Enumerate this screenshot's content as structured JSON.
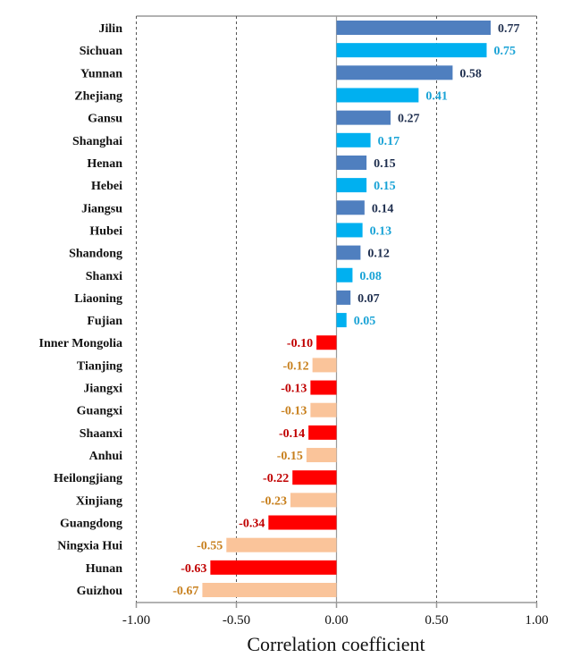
{
  "chart_data": {
    "type": "bar",
    "orientation": "horizontal",
    "xlabel": "Correlation coefficient",
    "xlim": [
      -1.0,
      1.0
    ],
    "xticks": [
      "-1.00",
      "-0.50",
      "0.00",
      "0.50",
      "1.00"
    ],
    "grid": "vertical dashed at tick positions",
    "categories": [
      "Jilin",
      "Sichuan",
      "Yunnan",
      "Zhejiang",
      "Gansu",
      "Shanghai",
      "Henan",
      "Hebei",
      "Jiangsu",
      "Hubei",
      "Shandong",
      "Shanxi",
      "Liaoning",
      "Fujian",
      "Inner Mongolia",
      "Tianjing",
      "Jiangxi",
      "Guangxi",
      "Shaanxi",
      "Anhui",
      "Heilongjiang",
      "Xinjiang",
      "Guangdong",
      "Ningxia Hui",
      "Hunan",
      "Guizhou"
    ],
    "values": [
      0.77,
      0.75,
      0.58,
      0.41,
      0.27,
      0.17,
      0.15,
      0.15,
      0.14,
      0.13,
      0.12,
      0.08,
      0.07,
      0.05,
      -0.1,
      -0.12,
      -0.13,
      -0.13,
      -0.14,
      -0.15,
      -0.22,
      -0.23,
      -0.34,
      -0.55,
      -0.63,
      -0.67
    ],
    "value_labels": [
      "0.77",
      "0.75",
      "0.58",
      "0.41",
      "0.27",
      "0.17",
      "0.15",
      "0.15",
      "0.14",
      "0.13",
      "0.12",
      "0.08",
      "0.07",
      "0.05",
      "-0.10",
      "-0.12",
      "-0.13",
      "-0.13",
      "-0.14",
      "-0.15",
      "-0.22",
      "-0.23",
      "-0.34",
      "-0.55",
      "-0.63",
      "-0.67"
    ],
    "colors": {
      "positive_a": {
        "bar": "#4F7FBF",
        "label": "#1F2F4F"
      },
      "positive_b": {
        "bar": "#00B0F0",
        "label": "#1AA3D6"
      },
      "negative_a": {
        "bar": "#FF0000",
        "label": "#C00000"
      },
      "negative_b": {
        "bar": "#FAC49A",
        "label": "#C8801E"
      }
    }
  }
}
